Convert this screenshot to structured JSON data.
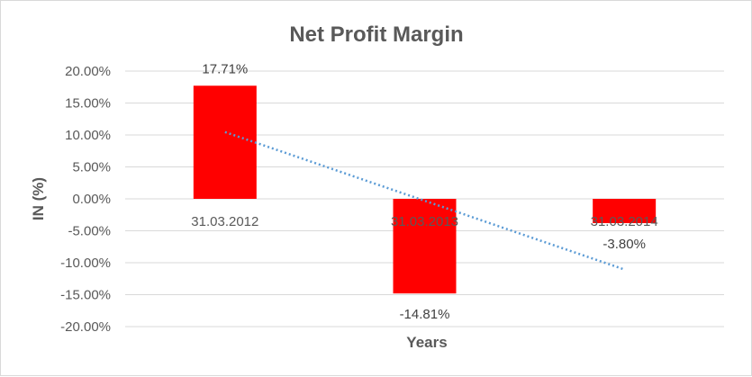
{
  "chart_data": {
    "type": "bar",
    "title": "Net Profit Margin",
    "xlabel": "Years",
    "ylabel": "IN (%)",
    "categories": [
      "31.03.2012",
      "31.03.2013",
      "31.03.2014"
    ],
    "values": [
      17.71,
      -14.81,
      -3.8
    ],
    "data_labels": [
      "17.71%",
      "-14.81%",
      "-3.80%"
    ],
    "ylim": [
      -20,
      20
    ],
    "yticks": [
      20,
      15,
      10,
      5,
      0,
      -5,
      -10,
      -15,
      -20
    ],
    "ytick_labels": [
      "20.00%",
      "15.00%",
      "10.00%",
      "5.00%",
      "0.00%",
      "-5.00%",
      "-10.00%",
      "-15.00%",
      "-20.00%"
    ],
    "grid": true,
    "trendline": {
      "type": "linear",
      "style": "dotted"
    },
    "colors": {
      "bar": "#ff0000",
      "trendline": "#5b9bd5",
      "grid": "#d9d9d9"
    }
  }
}
